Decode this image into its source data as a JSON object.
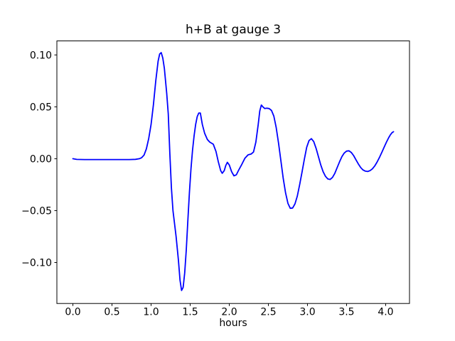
{
  "chart_data": {
    "type": "line",
    "title": "h+B at gauge 3",
    "xlabel": "hours",
    "ylabel": "",
    "grid": false,
    "legend_position": "none",
    "xlim": [
      -0.205,
      4.305
    ],
    "ylim": [
      -0.1395,
      0.1135
    ],
    "xticks": {
      "values": [
        0.0,
        0.5,
        1.0,
        1.5,
        2.0,
        2.5,
        3.0,
        3.5,
        4.0
      ],
      "labels": [
        "0.0",
        "0.5",
        "1.0",
        "1.5",
        "2.0",
        "2.5",
        "3.0",
        "3.5",
        "4.0"
      ]
    },
    "yticks": {
      "values": [
        0.1,
        0.05,
        0.0,
        -0.05,
        -0.1
      ],
      "labels": [
        "0.10",
        "0.05",
        "0.00",
        "−0.05",
        "−0.10"
      ]
    },
    "series": [
      {
        "name": "h+B",
        "color": "#0000ff",
        "x": [
          0.0,
          0.05,
          0.15,
          0.3,
          0.45,
          0.6,
          0.72,
          0.8,
          0.85,
          0.88,
          0.91,
          0.94,
          0.97,
          1.0,
          1.03,
          1.06,
          1.09,
          1.11,
          1.13,
          1.15,
          1.17,
          1.2,
          1.22,
          1.24,
          1.26,
          1.28,
          1.3,
          1.32,
          1.35,
          1.37,
          1.39,
          1.41,
          1.43,
          1.45,
          1.47,
          1.49,
          1.51,
          1.53,
          1.55,
          1.57,
          1.59,
          1.61,
          1.63,
          1.655,
          1.685,
          1.72,
          1.75,
          1.795,
          1.83,
          1.86,
          1.89,
          1.91,
          1.935,
          1.955,
          1.975,
          2.0,
          2.03,
          2.06,
          2.09,
          2.12,
          2.16,
          2.2,
          2.24,
          2.28,
          2.31,
          2.34,
          2.37,
          2.39,
          2.41,
          2.43,
          2.455,
          2.48,
          2.51,
          2.54,
          2.57,
          2.6,
          2.63,
          2.66,
          2.69,
          2.72,
          2.75,
          2.78,
          2.81,
          2.84,
          2.87,
          2.9,
          2.93,
          2.96,
          2.99,
          3.02,
          3.05,
          3.08,
          3.11,
          3.14,
          3.17,
          3.2,
          3.23,
          3.26,
          3.29,
          3.32,
          3.35,
          3.38,
          3.41,
          3.44,
          3.47,
          3.5,
          3.53,
          3.56,
          3.59,
          3.62,
          3.65,
          3.68,
          3.71,
          3.74,
          3.77,
          3.8,
          3.83,
          3.86,
          3.89,
          3.92,
          3.95,
          3.98,
          4.01,
          4.04,
          4.06,
          4.08,
          4.1
        ],
        "y": [
          0.0,
          -0.0007,
          -0.0008,
          -0.0008,
          -0.0008,
          -0.0008,
          -0.0008,
          -0.0006,
          0.0,
          0.001,
          0.0035,
          0.0095,
          0.0195,
          0.033,
          0.052,
          0.075,
          0.094,
          0.101,
          0.1022,
          0.097,
          0.087,
          0.063,
          0.043,
          0.005,
          -0.028,
          -0.05,
          -0.0625,
          -0.075,
          -0.098,
          -0.117,
          -0.127,
          -0.124,
          -0.11,
          -0.088,
          -0.06,
          -0.033,
          -0.01,
          0.008,
          0.022,
          0.033,
          0.0405,
          0.044,
          0.044,
          0.033,
          0.0244,
          0.0185,
          0.016,
          0.014,
          0.007,
          -0.003,
          -0.0115,
          -0.014,
          -0.0115,
          -0.0065,
          -0.0035,
          -0.006,
          -0.0125,
          -0.0165,
          -0.0155,
          -0.011,
          -0.0055,
          0.0005,
          0.0037,
          0.0045,
          0.0065,
          0.016,
          0.033,
          0.046,
          0.0517,
          0.05,
          0.0483,
          0.0487,
          0.0483,
          0.0465,
          0.041,
          0.03,
          0.015,
          -0.002,
          -0.019,
          -0.033,
          -0.043,
          -0.0478,
          -0.0475,
          -0.0435,
          -0.036,
          -0.025,
          -0.013,
          -0.0005,
          0.011,
          0.0175,
          0.0193,
          0.0165,
          0.01,
          0.002,
          -0.006,
          -0.0125,
          -0.017,
          -0.0195,
          -0.02,
          -0.018,
          -0.014,
          -0.0085,
          -0.003,
          0.002,
          0.0055,
          0.0073,
          0.0076,
          0.006,
          0.003,
          -0.001,
          -0.005,
          -0.0085,
          -0.0108,
          -0.012,
          -0.0123,
          -0.0115,
          -0.0098,
          -0.007,
          -0.0032,
          0.0012,
          0.006,
          0.011,
          0.016,
          0.0205,
          0.023,
          0.025,
          0.026
        ]
      }
    ]
  },
  "colors": {
    "line": "#0000ff",
    "axes": "#000000",
    "text": "#000000",
    "background": "#ffffff"
  }
}
